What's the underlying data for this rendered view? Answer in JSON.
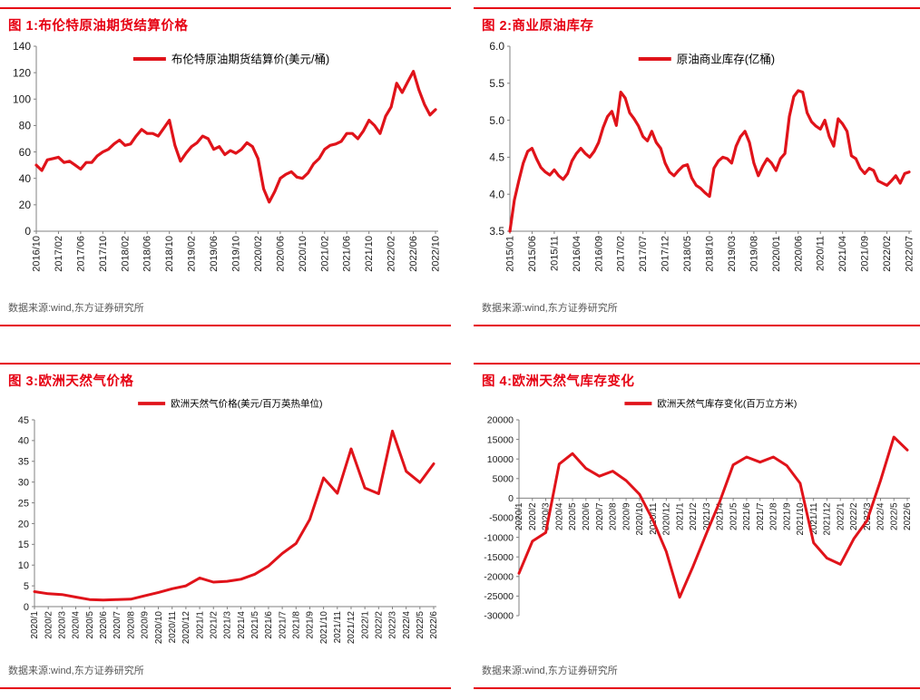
{
  "styles": {
    "accent_red": "#e60012",
    "line_red": "#e0131a",
    "axis_gray": "#808080",
    "tick_text_color": "#1a1a1a",
    "legend_text_color": "#000000",
    "source_text_color": "#595959",
    "background": "#ffffff"
  },
  "chart_data": [
    {
      "type": "line",
      "title": "图 1:布伦特原油期货结算价格",
      "legend_label": "布伦特原油期货结算价(美元/桶)",
      "source": "数据来源:wind,东方证券研究所",
      "legend_position": "top-center",
      "grid": false,
      "x_labels": [
        "2016/10",
        "2017/02",
        "2017/06",
        "2017/10",
        "2018/02",
        "2018/06",
        "2018/10",
        "2019/02",
        "2019/06",
        "2019/10",
        "2020/02",
        "2020/06",
        "2020/10",
        "2021/02",
        "2021/06",
        "2021/10",
        "2022/02",
        "2022/06",
        "2022/10"
      ],
      "label_step": 4,
      "values": [
        50,
        46,
        54,
        55,
        56,
        52,
        53,
        50,
        47,
        52,
        52,
        57,
        60,
        62,
        66,
        69,
        65,
        66,
        72,
        77,
        74,
        74,
        72,
        78,
        84,
        65,
        53,
        59,
        64,
        67,
        72,
        70,
        62,
        64,
        58,
        61,
        59,
        62,
        67,
        64,
        55,
        32,
        22,
        30,
        40,
        43,
        45,
        41,
        40,
        44,
        51,
        55,
        62,
        65,
        66,
        68,
        74,
        74,
        70,
        76,
        84,
        80,
        74,
        87,
        94,
        112,
        105,
        113,
        121,
        107,
        96,
        88,
        92
      ],
      "ylim": [
        0,
        140
      ],
      "y_ticks": [
        0,
        20,
        40,
        60,
        80,
        100,
        120,
        140
      ],
      "y_tick_labels": [
        "0",
        "20",
        "40",
        "60",
        "80",
        "100",
        "120",
        "140"
      ],
      "line_color": "#e0131a"
    },
    {
      "type": "line",
      "title": "图 2:商业原油库存",
      "legend_label": "原油商业库存(亿桶)",
      "source": "数据来源:wind,东方证券研究所",
      "legend_position": "top-center",
      "grid": false,
      "x_labels": [
        "2015/01",
        "2015/06",
        "2015/11",
        "2016/04",
        "2016/09",
        "2017/02",
        "2017/07",
        "2017/12",
        "2018/05",
        "2018/10",
        "2019/03",
        "2019/08",
        "2020/01",
        "2020/06",
        "2020/11",
        "2021/04",
        "2021/09",
        "2022/02",
        "2022/07"
      ],
      "label_step": 5,
      "values": [
        3.5,
        3.92,
        4.18,
        4.42,
        4.58,
        4.62,
        4.48,
        4.36,
        4.3,
        4.26,
        4.33,
        4.25,
        4.2,
        4.28,
        4.45,
        4.55,
        4.62,
        4.55,
        4.5,
        4.58,
        4.7,
        4.9,
        5.05,
        5.12,
        4.93,
        5.38,
        5.3,
        5.1,
        5.02,
        4.92,
        4.78,
        4.72,
        4.85,
        4.7,
        4.62,
        4.42,
        4.3,
        4.25,
        4.32,
        4.38,
        4.4,
        4.22,
        4.12,
        4.08,
        4.02,
        3.97,
        4.35,
        4.45,
        4.5,
        4.48,
        4.42,
        4.65,
        4.78,
        4.85,
        4.7,
        4.42,
        4.25,
        4.38,
        4.48,
        4.42,
        4.32,
        4.48,
        4.55,
        5.05,
        5.32,
        5.4,
        5.38,
        5.1,
        4.98,
        4.92,
        4.88,
        5.0,
        4.78,
        4.65,
        5.02,
        4.95,
        4.85,
        4.52,
        4.48,
        4.35,
        4.28,
        4.35,
        4.32,
        4.18,
        4.15,
        4.12,
        4.18,
        4.25,
        4.15,
        4.28,
        4.3
      ],
      "ylim": [
        3.5,
        6.0
      ],
      "y_ticks": [
        3.5,
        4.0,
        4.5,
        5.0,
        5.5,
        6.0
      ],
      "y_tick_labels": [
        "3.5",
        "4.0",
        "4.5",
        "5.0",
        "5.5",
        "6.0"
      ],
      "line_color": "#e0131a"
    },
    {
      "type": "line",
      "title": "图 3:欧洲天然气价格",
      "legend_label": "欧洲天然气价格(美元/百万英热单位)",
      "source": "数据来源:wind,东方证券研究所",
      "legend_position": "top-center",
      "grid": false,
      "x_labels": [
        "2020/1",
        "2020/2",
        "2020/3",
        "2020/4",
        "2020/5",
        "2020/6",
        "2020/7",
        "2020/8",
        "2020/9",
        "2020/10",
        "2020/11",
        "2020/12",
        "2021/1",
        "2021/2",
        "2021/3",
        "2021/4",
        "2021/5",
        "2021/6",
        "2021/7",
        "2021/8",
        "2021/9",
        "2021/10",
        "2021/11",
        "2021/12",
        "2022/1",
        "2022/2",
        "2022/3",
        "2022/4",
        "2022/5",
        "2022/6"
      ],
      "label_step": 1,
      "values": [
        3.6,
        3.1,
        2.9,
        2.3,
        1.7,
        1.6,
        1.7,
        1.8,
        2.6,
        3.4,
        4.3,
        5.0,
        6.9,
        5.9,
        6.1,
        6.6,
        7.8,
        9.8,
        12.8,
        15.2,
        21.0,
        31.0,
        27.3,
        38.0,
        28.6,
        27.2,
        42.3,
        32.6,
        29.9,
        34.4
      ],
      "ylim": [
        0,
        45
      ],
      "y_ticks": [
        0,
        5,
        10,
        15,
        20,
        25,
        30,
        35,
        40,
        45
      ],
      "y_tick_labels": [
        "0",
        "5",
        "10",
        "15",
        "20",
        "25",
        "30",
        "35",
        "40",
        "45"
      ],
      "line_color": "#e0131a"
    },
    {
      "type": "line",
      "title": "图 4:欧洲天然气库存变化",
      "legend_label": "欧洲天然气库存变化(百万立方米)",
      "source": "数据来源:wind,东方证券研究所",
      "legend_position": "top-center",
      "grid": false,
      "x_labels": [
        "2020/1",
        "2020/2",
        "2020/3",
        "2020/4",
        "2020/5",
        "2020/6",
        "2020/7",
        "2020/8",
        "2020/9",
        "2020/10",
        "2020/11",
        "2020/12",
        "2021/1",
        "2021/2",
        "2021/3",
        "2021/4",
        "2021/5",
        "2021/6",
        "2021/7",
        "2021/8",
        "2021/9",
        "2021/10",
        "2021/11",
        "2021/12",
        "2022/1",
        "2022/2",
        "2022/3",
        "2022/4",
        "2022/5",
        "2022/6"
      ],
      "label_step": 1,
      "x_axis_at": 0,
      "values": [
        -19200,
        -11000,
        -8800,
        8700,
        11400,
        7600,
        5600,
        6900,
        4500,
        1000,
        -5600,
        -13600,
        -25300,
        -17400,
        -9000,
        -800,
        8500,
        10500,
        9200,
        10500,
        8300,
        3800,
        -11400,
        -15300,
        -16900,
        -10400,
        -5700,
        4500,
        15600,
        12300
      ],
      "ylim": [
        -30000,
        20000
      ],
      "y_ticks": [
        -30000,
        -25000,
        -20000,
        -15000,
        -10000,
        -5000,
        0,
        5000,
        10000,
        15000,
        20000
      ],
      "y_tick_labels": [
        "-30000",
        "-25000",
        "-20000",
        "-15000",
        "-10000",
        "-5000",
        "0",
        "5000",
        "10000",
        "15000",
        "20000"
      ],
      "line_color": "#e0131a"
    }
  ]
}
